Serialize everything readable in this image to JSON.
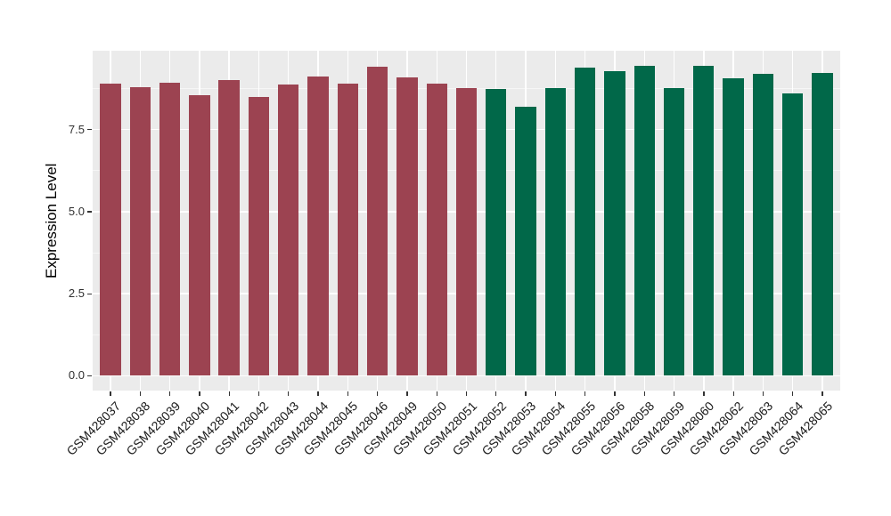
{
  "chart_data": {
    "type": "bar",
    "title": "",
    "ylabel": "Expression Level",
    "xlabel": "",
    "legend_position": "none",
    "grid": "major and minor horizontal white gridlines plus vertical white gridlines at each category, on gray panel",
    "panel_background": "#EBEBEB",
    "major_grid_color": "#FFFFFF",
    "tick_color": "#333333",
    "ylim": [
      0,
      9.9
    ],
    "ytick_labels": [
      "0.0",
      "2.5",
      "5.0",
      "7.5"
    ],
    "ytick_values": [
      0,
      2.5,
      5,
      7.5
    ],
    "minor_tick_values": [
      1.25,
      3.75,
      6.25,
      8.75
    ],
    "categories": [
      "GSM428037",
      "GSM428038",
      "GSM428039",
      "GSM428040",
      "GSM428041",
      "GSM428042",
      "GSM428043",
      "GSM428044",
      "GSM428045",
      "GSM428046",
      "GSM428049",
      "GSM428050",
      "GSM428051",
      "GSM428052",
      "GSM428053",
      "GSM428054",
      "GSM428055",
      "GSM428056",
      "GSM428058",
      "GSM428059",
      "GSM428060",
      "GSM428062",
      "GSM428063",
      "GSM428064",
      "GSM428065"
    ],
    "values": [
      8.9,
      8.8,
      8.92,
      8.55,
      9.02,
      8.5,
      8.87,
      9.12,
      8.9,
      9.42,
      9.1,
      8.9,
      8.78,
      8.73,
      8.2,
      8.78,
      9.4,
      9.28,
      9.44,
      8.78,
      9.44,
      9.08,
      9.2,
      8.6,
      9.23
    ],
    "groups": [
      "group1",
      "group1",
      "group1",
      "group1",
      "group1",
      "group1",
      "group1",
      "group1",
      "group1",
      "group1",
      "group1",
      "group1",
      "group1",
      "group2",
      "group2",
      "group2",
      "group2",
      "group2",
      "group2",
      "group2",
      "group2",
      "group2",
      "group2",
      "group2",
      "group2"
    ],
    "group_colors": {
      "group1": "#9C4351",
      "group2": "#016849"
    },
    "bar_width_fraction": 0.7
  }
}
